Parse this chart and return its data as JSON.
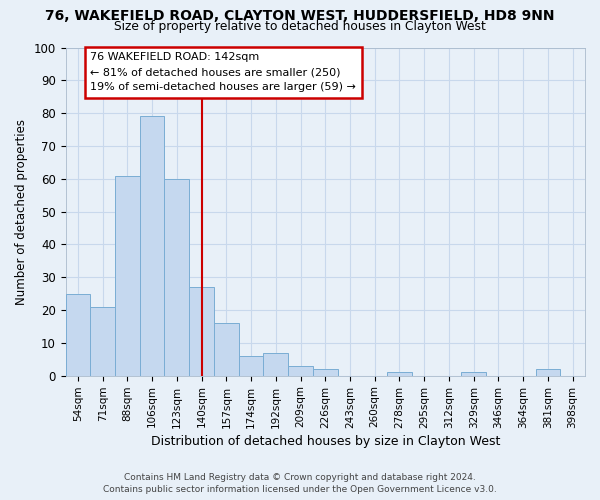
{
  "title_line1": "76, WAKEFIELD ROAD, CLAYTON WEST, HUDDERSFIELD, HD8 9NN",
  "title_line2": "Size of property relative to detached houses in Clayton West",
  "xlabel": "Distribution of detached houses by size in Clayton West",
  "ylabel": "Number of detached properties",
  "categories": [
    "54sqm",
    "71sqm",
    "88sqm",
    "106sqm",
    "123sqm",
    "140sqm",
    "157sqm",
    "174sqm",
    "192sqm",
    "209sqm",
    "226sqm",
    "243sqm",
    "260sqm",
    "278sqm",
    "295sqm",
    "312sqm",
    "329sqm",
    "346sqm",
    "364sqm",
    "381sqm",
    "398sqm"
  ],
  "values": [
    25,
    21,
    61,
    79,
    60,
    27,
    16,
    6,
    7,
    3,
    2,
    0,
    0,
    1,
    0,
    0,
    1,
    0,
    0,
    2,
    0
  ],
  "bar_color": "#c5d8ef",
  "bar_edge_color": "#7aadd4",
  "vline_color": "#cc0000",
  "vline_x_index": 5,
  "annotation_text1": "76 WAKEFIELD ROAD: 142sqm",
  "annotation_text2": "← 81% of detached houses are smaller (250)",
  "annotation_text3": "19% of semi-detached houses are larger (59) →",
  "annotation_box_facecolor": "#ffffff",
  "annotation_box_edgecolor": "#cc0000",
  "grid_color": "#c8d8ec",
  "background_color": "#e8f0f8",
  "plot_bg_color": "#e8f0f8",
  "ylim_max": 100,
  "footer1": "Contains HM Land Registry data © Crown copyright and database right 2024.",
  "footer2": "Contains public sector information licensed under the Open Government Licence v3.0."
}
